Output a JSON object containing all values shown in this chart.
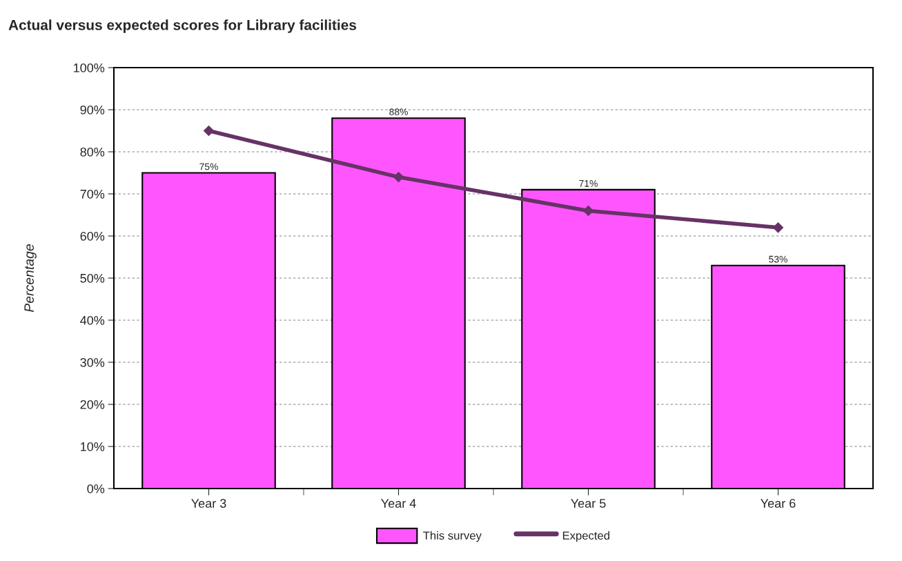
{
  "chart_data": {
    "type": "bar",
    "title": "Actual versus expected scores for Library facilities",
    "ylabel": "Percentage",
    "categories": [
      "Year 3",
      "Year 4",
      "Year 5",
      "Year 6"
    ],
    "series": [
      {
        "name": "This survey",
        "color": "#ff55ff",
        "values": [
          75,
          88,
          71,
          53
        ],
        "value_labels": [
          "75%",
          "88%",
          "71%",
          "53%"
        ]
      },
      {
        "name": "Expected",
        "type": "line",
        "color": "#663366",
        "values": [
          85,
          74,
          66,
          62
        ],
        "marker": "diamond",
        "line_style": "solid"
      }
    ],
    "ylim": [
      0,
      100
    ],
    "yticks": [
      {
        "value": 0,
        "label": "0%"
      },
      {
        "value": 10,
        "label": "10%"
      },
      {
        "value": 20,
        "label": "20%"
      },
      {
        "value": 30,
        "label": "30%"
      },
      {
        "value": 40,
        "label": "40%"
      },
      {
        "value": 50,
        "label": "50%"
      },
      {
        "value": 60,
        "label": "60%"
      },
      {
        "value": 70,
        "label": "70%"
      },
      {
        "value": 80,
        "label": "80%"
      },
      {
        "value": 90,
        "label": "90%"
      },
      {
        "value": 100,
        "label": "100%"
      }
    ],
    "grid": "y",
    "legend": "bottom"
  }
}
